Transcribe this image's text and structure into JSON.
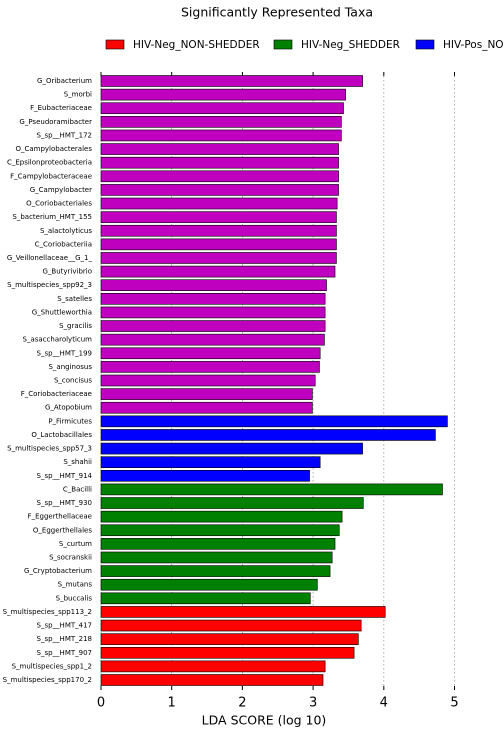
{
  "chart_data": {
    "type": "barh",
    "title": "Significantly Represented Taxa",
    "xlabel": "LDA SCORE (log 10)",
    "categories": [
      "G_Oribacterium",
      "S_morbi",
      "F_Eubacteriaceae",
      "G_Pseudoramibacter",
      "S_sp__HMT_172",
      "O_Campylobacterales",
      "C_Epsilonproteobacteria",
      "F_Campylobacteraceae",
      "G_Campylobacter",
      "O_Coriobacteriales",
      "S_bacterium_HMT_155",
      "S_alactolyticus",
      "C_Coriobacteriia",
      "G_Veillonellaceae__G_1_",
      "G_Butyrivibrio",
      "S_multispecies_spp92_3",
      "S_satelles",
      "G_Shuttleworthia",
      "S_gracilis",
      "S_asaccharolyticum",
      "S_sp__HMT_199",
      "S_anginosus",
      "S_concisus",
      "F_Coriobacteriaceae",
      "G_Atopobium",
      "P_Firmicutes",
      "O_Lactobacillales",
      "S_multispecies_spp57_3",
      "S_shahii",
      "S_sp__HMT_914",
      "C_Bacilli",
      "S_sp__HMT_930",
      "F_Eggerthellaceae",
      "O_Eggerthellales",
      "S_curtum",
      "S_socranskii",
      "G_Cryptobacterium",
      "S_mutans",
      "S_buccalis",
      "S_multispecies_spp113_2",
      "S_sp__HMT_417",
      "S_sp__HMT_218",
      "S_sp__HMT_907",
      "S_multispecies_spp1_2",
      "S_multispecies_spp170_2"
    ],
    "series": [
      {
        "name": "HIV-Neg_NON-SHEDDER",
        "color": "#ff0000",
        "values": [
          null,
          null,
          null,
          null,
          null,
          null,
          null,
          null,
          null,
          null,
          null,
          null,
          null,
          null,
          null,
          null,
          null,
          null,
          null,
          null,
          null,
          null,
          null,
          null,
          null,
          null,
          null,
          null,
          null,
          null,
          null,
          null,
          null,
          null,
          null,
          null,
          null,
          null,
          null,
          4.02,
          3.68,
          3.64,
          3.58,
          3.17,
          3.14
        ]
      },
      {
        "name": "HIV-Neg_SHEDDER",
        "color": "#008000",
        "values": [
          null,
          null,
          null,
          null,
          null,
          null,
          null,
          null,
          null,
          null,
          null,
          null,
          null,
          null,
          null,
          null,
          null,
          null,
          null,
          null,
          null,
          null,
          null,
          null,
          null,
          null,
          null,
          null,
          null,
          null,
          4.83,
          3.71,
          3.41,
          3.37,
          3.31,
          3.27,
          3.24,
          3.06,
          2.96,
          null,
          null,
          null,
          null,
          null,
          null
        ]
      },
      {
        "name": "HIV-Pos_NON",
        "color": "#0000ff",
        "values": [
          null,
          null,
          null,
          null,
          null,
          null,
          null,
          null,
          null,
          null,
          null,
          null,
          null,
          null,
          null,
          null,
          null,
          null,
          null,
          null,
          null,
          null,
          null,
          null,
          null,
          4.9,
          4.73,
          3.7,
          3.1,
          2.95,
          null,
          null,
          null,
          null,
          null,
          null,
          null,
          null,
          null,
          null,
          null,
          null,
          null,
          null,
          null
        ]
      },
      {
        "color": "#bf00bf",
        "values": [
          3.7,
          3.46,
          3.43,
          3.4,
          3.4,
          3.36,
          3.36,
          3.36,
          3.36,
          3.34,
          3.33,
          3.33,
          3.33,
          3.33,
          3.31,
          3.19,
          3.17,
          3.17,
          3.17,
          3.16,
          3.1,
          3.09,
          3.03,
          2.99,
          2.99,
          null,
          null,
          null,
          null,
          null,
          null,
          null,
          null,
          null,
          null,
          null,
          null,
          null,
          null,
          null,
          null,
          null,
          null,
          null,
          null
        ]
      }
    ],
    "xlim": [
      0,
      5.7
    ],
    "xticks": [
      0,
      1,
      2,
      3,
      4,
      5
    ],
    "grid": true
  }
}
